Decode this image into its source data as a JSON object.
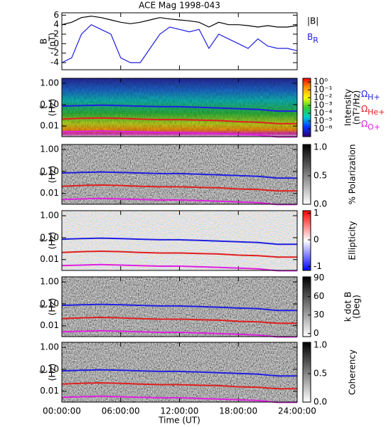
{
  "chart_data": [
    {
      "type": "line",
      "title": "ACE Mag 1998-043",
      "ylabel": [
        "B",
        "(nT)"
      ],
      "ylim": [
        -5.5,
        6.5
      ],
      "yticks": [
        -4,
        -2,
        0,
        2,
        4,
        6
      ],
      "x": [
        0,
        1,
        2,
        3,
        4,
        5,
        6,
        7,
        8,
        9,
        10,
        11,
        12,
        13,
        14,
        15,
        16,
        17,
        18,
        19,
        20,
        21,
        22,
        23,
        24
      ],
      "series": [
        {
          "name": "|B|",
          "color": "#000000",
          "values": [
            4.0,
            4.5,
            5.5,
            5.8,
            5.5,
            5.0,
            4.5,
            4.2,
            4.5,
            5.0,
            5.5,
            5.2,
            5.0,
            4.8,
            4.5,
            3.5,
            4.5,
            4.0,
            4.0,
            3.8,
            3.5,
            3.8,
            3.5,
            3.5,
            3.8
          ]
        },
        {
          "name": "BR",
          "color": "#1f1fe0",
          "values": [
            -4,
            -3,
            2,
            4,
            3,
            2,
            -3,
            -4,
            -4,
            -1,
            2,
            3.5,
            3,
            2.5,
            3,
            -1,
            2,
            1,
            0,
            -1,
            1,
            -0.5,
            -1,
            -1,
            -1.5
          ]
        }
      ]
    },
    {
      "type": "spectrogram",
      "ylabel": [
        "f",
        "(Hz)"
      ],
      "log": true,
      "ylim": [
        0.0032,
        1.7
      ],
      "yticks": [
        {
          "value": 0.01,
          "label": "0.01"
        },
        {
          "value": 0.1,
          "label": "0.10"
        },
        {
          "value": 1,
          "label": "1.00"
        }
      ],
      "x": [
        0,
        2,
        4,
        6,
        8,
        10,
        12,
        14,
        16,
        18,
        20,
        22,
        24
      ],
      "series": [
        {
          "name": "ΩH+",
          "color": "#1f1fe0",
          "values": [
            0.085,
            0.09,
            0.095,
            0.09,
            0.085,
            0.08,
            0.08,
            0.075,
            0.07,
            0.065,
            0.06,
            0.05,
            0.05
          ]
        },
        {
          "name": "ΩHe+",
          "color": "#e01f1f",
          "values": [
            0.021,
            0.023,
            0.024,
            0.023,
            0.021,
            0.02,
            0.02,
            0.019,
            0.018,
            0.016,
            0.015,
            0.013,
            0.013
          ]
        },
        {
          "name": "ΩO+",
          "color": "#e020e0",
          "values": [
            0.0053,
            0.0056,
            0.0059,
            0.0056,
            0.0053,
            0.005,
            0.005,
            0.0047,
            0.0044,
            0.0041,
            0.0038,
            0.0031,
            0.0031
          ]
        }
      ],
      "colorbar": {
        "label": [
          "Intensity",
          "(nT²/Hz)"
        ],
        "log": true,
        "lim": [
          1e-07,
          3
        ],
        "colors": [
          "#ff0000",
          "#ff9900",
          "#ffff00",
          "#33cc33",
          "#00cccc",
          "#0033ff",
          "#330066"
        ],
        "ticks": [
          {
            "value": 1e-06,
            "label": "10⁻⁶"
          },
          {
            "value": 1e-05,
            "label": "10⁻⁵"
          },
          {
            "value": 0.0001,
            "label": "10⁻⁴"
          },
          {
            "value": 0.001,
            "label": "10⁻³"
          },
          {
            "value": 0.01,
            "label": "10⁻²"
          },
          {
            "value": 0.1,
            "label": "10⁻¹"
          },
          {
            "value": 1,
            "label": "10⁰"
          }
        ]
      }
    },
    {
      "type": "spectrogram",
      "ylabel": [
        "f",
        "(Hz)"
      ],
      "log": true,
      "ylim": [
        0.0032,
        1.7
      ],
      "yticks": [
        {
          "value": 0.01,
          "label": "0.01"
        },
        {
          "value": 0.1,
          "label": "0.10"
        },
        {
          "value": 1,
          "label": "1.00"
        }
      ],
      "x": [
        0,
        2,
        4,
        6,
        8,
        10,
        12,
        14,
        16,
        18,
        20,
        22,
        24
      ],
      "series": [
        {
          "color": "#1f1fe0",
          "values": [
            0.085,
            0.09,
            0.095,
            0.09,
            0.085,
            0.08,
            0.08,
            0.075,
            0.07,
            0.065,
            0.06,
            0.05,
            0.05
          ]
        },
        {
          "color": "#e01f1f",
          "values": [
            0.021,
            0.023,
            0.024,
            0.023,
            0.021,
            0.02,
            0.02,
            0.019,
            0.018,
            0.016,
            0.015,
            0.013,
            0.013
          ]
        },
        {
          "color": "#e020e0",
          "values": [
            0.0053,
            0.0056,
            0.0059,
            0.0056,
            0.0053,
            0.005,
            0.005,
            0.0047,
            0.0044,
            0.0041,
            0.0038,
            0.0031,
            0.0031
          ]
        }
      ],
      "colorbar": {
        "label": [
          "% Polarization"
        ],
        "log": false,
        "lim": [
          0,
          1.05
        ],
        "colors": [
          "#000000",
          "#ffffff"
        ],
        "ticks": [
          {
            "value": 0,
            "label": "0.0"
          },
          {
            "value": 0.5,
            "label": "0.5"
          },
          {
            "value": 1,
            "label": "1.0"
          }
        ]
      }
    },
    {
      "type": "spectrogram",
      "ylabel": [
        "f",
        "(Hz)"
      ],
      "log": true,
      "ylim": [
        0.0032,
        1.7
      ],
      "yticks": [
        {
          "value": 0.01,
          "label": "0.01"
        },
        {
          "value": 0.1,
          "label": "0.10"
        },
        {
          "value": 1,
          "label": "1.00"
        }
      ],
      "x": [
        0,
        2,
        4,
        6,
        8,
        10,
        12,
        14,
        16,
        18,
        20,
        22,
        24
      ],
      "series": [
        {
          "color": "#1f1fe0",
          "values": [
            0.085,
            0.09,
            0.095,
            0.09,
            0.085,
            0.08,
            0.08,
            0.075,
            0.07,
            0.065,
            0.06,
            0.05,
            0.05
          ]
        },
        {
          "color": "#e01f1f",
          "values": [
            0.021,
            0.023,
            0.024,
            0.023,
            0.021,
            0.02,
            0.02,
            0.019,
            0.018,
            0.016,
            0.015,
            0.013,
            0.013
          ]
        },
        {
          "color": "#e020e0",
          "values": [
            0.0053,
            0.0056,
            0.0059,
            0.0056,
            0.0053,
            0.005,
            0.005,
            0.0047,
            0.0044,
            0.0041,
            0.0038,
            0.0031,
            0.0031
          ]
        }
      ],
      "colorbar": {
        "label": [
          "Ellipticity"
        ],
        "log": false,
        "lim": [
          -1.15,
          1.1
        ],
        "colors": [
          "#ff0000",
          "#ffffff",
          "#0000ff"
        ],
        "ticks": [
          -1,
          0,
          1
        ]
      }
    },
    {
      "type": "spectrogram",
      "ylabel": [
        "f",
        "(Hz)"
      ],
      "log": true,
      "ylim": [
        0.0032,
        1.7
      ],
      "yticks": [
        {
          "value": 0.01,
          "label": "0.01"
        },
        {
          "value": 0.1,
          "label": "0.10"
        },
        {
          "value": 1,
          "label": "1.00"
        }
      ],
      "x": [
        0,
        2,
        4,
        6,
        8,
        10,
        12,
        14,
        16,
        18,
        20,
        22,
        24
      ],
      "series": [
        {
          "color": "#1f1fe0",
          "values": [
            0.085,
            0.09,
            0.095,
            0.09,
            0.085,
            0.08,
            0.08,
            0.075,
            0.07,
            0.065,
            0.06,
            0.05,
            0.05
          ]
        },
        {
          "color": "#e01f1f",
          "values": [
            0.021,
            0.023,
            0.024,
            0.023,
            0.021,
            0.02,
            0.02,
            0.019,
            0.018,
            0.016,
            0.015,
            0.013,
            0.013
          ]
        },
        {
          "color": "#e020e0",
          "values": [
            0.0053,
            0.0056,
            0.0059,
            0.0056,
            0.0053,
            0.005,
            0.005,
            0.0047,
            0.0044,
            0.0041,
            0.0038,
            0.0031,
            0.0031
          ]
        }
      ],
      "colorbar": {
        "label": [
          "k dot B",
          "(Deg)"
        ],
        "log": false,
        "lim": [
          -5,
          92
        ],
        "colors": [
          "#000000",
          "#ffffff"
        ],
        "ticks": [
          0,
          30,
          60,
          90
        ]
      }
    },
    {
      "type": "spectrogram",
      "ylabel": [
        "f",
        "(Hz)"
      ],
      "log": true,
      "ylim": [
        0.0032,
        1.7
      ],
      "yticks": [
        {
          "value": 0.01,
          "label": "0.01"
        },
        {
          "value": 0.1,
          "label": "0.10"
        },
        {
          "value": 1,
          "label": "1.00"
        }
      ],
      "x": [
        0,
        2,
        4,
        6,
        8,
        10,
        12,
        14,
        16,
        18,
        20,
        22,
        24
      ],
      "series": [
        {
          "color": "#1f1fe0",
          "values": [
            0.085,
            0.09,
            0.095,
            0.09,
            0.085,
            0.08,
            0.08,
            0.075,
            0.07,
            0.065,
            0.06,
            0.05,
            0.05
          ]
        },
        {
          "color": "#e01f1f",
          "values": [
            0.021,
            0.023,
            0.024,
            0.023,
            0.021,
            0.02,
            0.02,
            0.019,
            0.018,
            0.016,
            0.015,
            0.013,
            0.013
          ]
        },
        {
          "color": "#e020e0",
          "values": [
            0.0053,
            0.0056,
            0.0059,
            0.0056,
            0.0053,
            0.005,
            0.005,
            0.0047,
            0.0044,
            0.0041,
            0.0038,
            0.0031,
            0.0031
          ]
        }
      ],
      "colorbar": {
        "label": [
          "Coherency"
        ],
        "log": false,
        "lim": [
          0,
          1.05
        ],
        "colors": [
          "#000000",
          "#ffffff"
        ],
        "ticks": [
          {
            "value": 0,
            "label": "0.0"
          },
          {
            "value": 0.5,
            "label": "0.5"
          },
          {
            "value": 1,
            "label": "1.0"
          }
        ]
      },
      "xlabel": "Time (UT)",
      "xlim": [
        0,
        24
      ],
      "xticks": [
        {
          "value": 0,
          "label": "00:00:00"
        },
        {
          "value": 6,
          "label": "06:00:00"
        },
        {
          "value": 12,
          "label": "12:00:00"
        },
        {
          "value": 18,
          "label": "18:00:00"
        },
        {
          "value": 24,
          "label": "24:00:00"
        }
      ]
    }
  ]
}
